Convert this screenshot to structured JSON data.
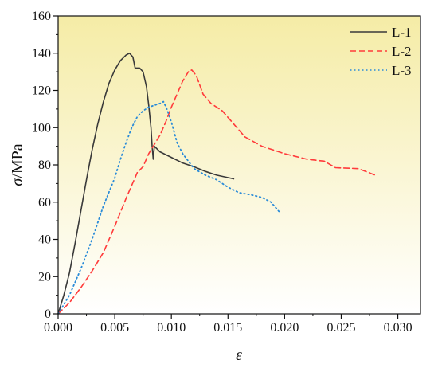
{
  "chart_data": {
    "type": "line",
    "title": "",
    "xlabel": "ε",
    "ylabel_symbol": "σ",
    "ylabel_unit": "/MPa",
    "xlim": [
      0,
      0.032
    ],
    "ylim": [
      0,
      160
    ],
    "xticks": [
      0,
      0.005,
      0.01,
      0.015,
      0.02,
      0.025,
      0.03
    ],
    "xtick_labels": [
      "0.000",
      "0.005",
      "0.010",
      "0.015",
      "0.020",
      "0.025",
      "0.030"
    ],
    "yticks": [
      0,
      20,
      40,
      60,
      80,
      100,
      120,
      140,
      160
    ],
    "ytick_labels": [
      "0",
      "20",
      "40",
      "60",
      "80",
      "100",
      "120",
      "140",
      "160"
    ],
    "grid": false,
    "legend_position": "top-right",
    "background_gradient": [
      "#f5eca6",
      "#ffffff"
    ],
    "series": [
      {
        "name": "L-1",
        "color": "#3a3a3a",
        "dash": "solid",
        "points": [
          [
            0,
            0
          ],
          [
            0.0005,
            10
          ],
          [
            0.001,
            22
          ],
          [
            0.0015,
            38
          ],
          [
            0.002,
            55
          ],
          [
            0.0025,
            72
          ],
          [
            0.003,
            88
          ],
          [
            0.0035,
            102
          ],
          [
            0.004,
            114
          ],
          [
            0.0045,
            124
          ],
          [
            0.005,
            131
          ],
          [
            0.0055,
            136
          ],
          [
            0.006,
            139
          ],
          [
            0.0063,
            140
          ],
          [
            0.0066,
            138
          ],
          [
            0.0068,
            132
          ],
          [
            0.0072,
            132
          ],
          [
            0.0075,
            130
          ],
          [
            0.0078,
            122
          ],
          [
            0.008,
            112
          ],
          [
            0.0082,
            100
          ],
          [
            0.0083,
            90
          ],
          [
            0.0084,
            83
          ],
          [
            0.0085,
            90
          ],
          [
            0.009,
            87
          ],
          [
            0.01,
            84
          ],
          [
            0.011,
            81
          ],
          [
            0.012,
            79
          ],
          [
            0.013,
            76.5
          ],
          [
            0.014,
            74.5
          ],
          [
            0.0155,
            72.5
          ]
        ]
      },
      {
        "name": "L-2",
        "color": "#ff3b3b",
        "dash": "dashed",
        "points": [
          [
            0,
            0
          ],
          [
            0.001,
            6
          ],
          [
            0.002,
            14
          ],
          [
            0.003,
            23
          ],
          [
            0.004,
            33
          ],
          [
            0.005,
            47
          ],
          [
            0.006,
            62
          ],
          [
            0.007,
            76
          ],
          [
            0.0075,
            79
          ],
          [
            0.008,
            86
          ],
          [
            0.0085,
            91
          ],
          [
            0.009,
            96
          ],
          [
            0.0095,
            103
          ],
          [
            0.01,
            111
          ],
          [
            0.0105,
            118
          ],
          [
            0.011,
            125
          ],
          [
            0.0115,
            130
          ],
          [
            0.0118,
            131
          ],
          [
            0.0122,
            128
          ],
          [
            0.0128,
            118
          ],
          [
            0.0135,
            113
          ],
          [
            0.0145,
            109
          ],
          [
            0.0155,
            102
          ],
          [
            0.0165,
            95
          ],
          [
            0.018,
            90
          ],
          [
            0.02,
            86
          ],
          [
            0.022,
            83
          ],
          [
            0.0235,
            82
          ],
          [
            0.0245,
            78.5
          ],
          [
            0.0265,
            78
          ],
          [
            0.028,
            74.5
          ]
        ]
      },
      {
        "name": "L-3",
        "color": "#2a8bd8",
        "dash": "dotted",
        "points": [
          [
            0,
            0
          ],
          [
            0.001,
            10
          ],
          [
            0.002,
            24
          ],
          [
            0.003,
            40
          ],
          [
            0.004,
            58
          ],
          [
            0.005,
            73
          ],
          [
            0.0055,
            83
          ],
          [
            0.006,
            92
          ],
          [
            0.0065,
            100
          ],
          [
            0.007,
            106
          ],
          [
            0.0075,
            109
          ],
          [
            0.008,
            111
          ],
          [
            0.0085,
            112
          ],
          [
            0.009,
            113
          ],
          [
            0.0093,
            114
          ],
          [
            0.0096,
            110
          ],
          [
            0.01,
            103
          ],
          [
            0.0105,
            92
          ],
          [
            0.011,
            86
          ],
          [
            0.0115,
            82
          ],
          [
            0.012,
            78
          ],
          [
            0.013,
            74.5
          ],
          [
            0.014,
            72
          ],
          [
            0.015,
            68
          ],
          [
            0.016,
            65
          ],
          [
            0.017,
            64
          ],
          [
            0.018,
            62.5
          ],
          [
            0.0188,
            60
          ],
          [
            0.0195,
            55
          ]
        ]
      }
    ]
  }
}
